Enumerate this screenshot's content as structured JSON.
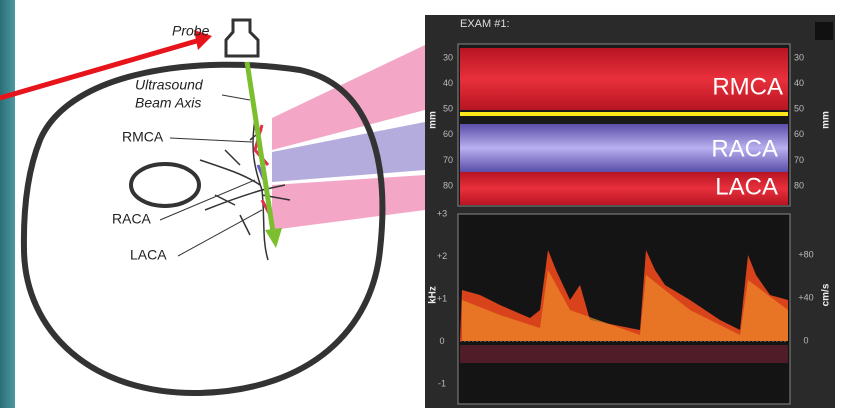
{
  "diagram": {
    "probe": "Probe",
    "beam_axis": [
      "Ultrasound",
      "Beam Axis"
    ],
    "vessels": [
      "RMCA",
      "RACA",
      "LACA"
    ]
  },
  "monitor": {
    "title": "EXAM #1:",
    "mmode": {
      "unit": "mm",
      "ticks": [
        "30",
        "40",
        "50",
        "60",
        "70",
        "80"
      ],
      "vessels": [
        "RMCA",
        "RACA",
        "LACA"
      ]
    },
    "spectrum": {
      "left_unit": "kHz",
      "left_ticks": [
        "+3",
        "+2",
        "+1",
        "0",
        "-1"
      ],
      "right_unit": "cm/s",
      "right_ticks": [
        "+80",
        "+40",
        "0"
      ]
    }
  }
}
